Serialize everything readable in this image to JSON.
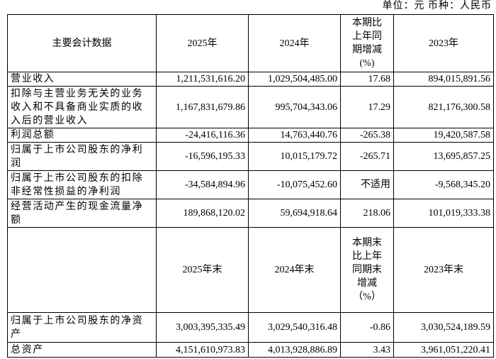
{
  "unit": "单位：元 币种：人民币",
  "table": {
    "header": [
      "主要会计数据",
      "2025年",
      "2024年",
      "本期比上年同期增减(%)",
      "2023年"
    ],
    "rows": [
      [
        "营业收入",
        "1,211,531,616.20",
        "1,029,504,485.00",
        "17.68",
        "894,015,891.56"
      ],
      [
        "扣除与主营业务无关的业务收入和不具备商业实质的收入后的营业收入",
        "1,167,831,679.86",
        "995,704,343.06",
        "17.29",
        "821,176,300.58"
      ],
      [
        "利润总额",
        "-24,416,116.36",
        "14,763,440.76",
        "-265.38",
        "19,420,587.58"
      ],
      [
        "归属于上市公司股东的净利润",
        "-16,596,195.33",
        "10,015,179.72",
        "-265.71",
        "13,695,857.25"
      ],
      [
        "归属于上市公司股东的扣除非经常性损益的净利润",
        "-34,584,894.96",
        "-10,075,452.60",
        "不适用",
        "-9,568,345.20"
      ],
      [
        "经营活动产生的现金流量净额",
        "189,868,120.02",
        "59,694,918.64",
        "218.06",
        "101,019,333.38"
      ]
    ],
    "header2": [
      "",
      "2025年末",
      "2024年末",
      "本期末比上年同期末增减（%）",
      "2023年末"
    ],
    "rows2": [
      [
        "归属于上市公司股东的净资产",
        "3,003,395,335.49",
        "3,029,540,316.48",
        "-0.86",
        "3,030,524,189.59"
      ],
      [
        "总资产",
        "4,151,610,973.83",
        "4,013,928,886.89",
        "3.43",
        "3,961,051,220.41"
      ]
    ]
  }
}
